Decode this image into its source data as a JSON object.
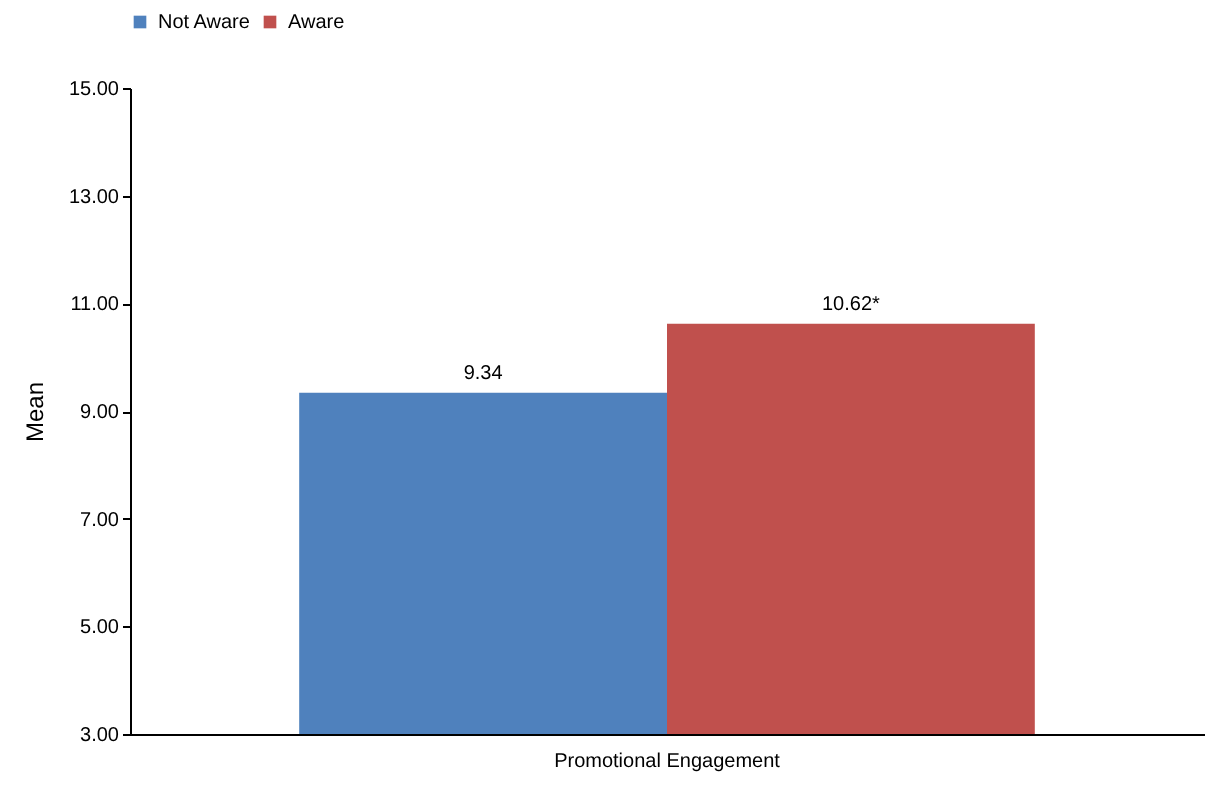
{
  "chart_data": {
    "type": "bar",
    "ylabel": "Mean",
    "categories": [
      "Promotional Engagement"
    ],
    "series": [
      {
        "name": "Not Aware",
        "color": "#4f81bd",
        "values": [
          9.34
        ],
        "value_labels": [
          "9.34"
        ]
      },
      {
        "name": "Aware",
        "color": "#c0504d",
        "values": [
          10.62
        ],
        "value_labels": [
          "10.62*"
        ]
      }
    ],
    "ylim": [
      3,
      15
    ],
    "yticks": [
      {
        "value": 3,
        "label": "3.00"
      },
      {
        "value": 5,
        "label": "5.00"
      },
      {
        "value": 7,
        "label": "7.00"
      },
      {
        "value": 9,
        "label": "9.00"
      },
      {
        "value": 11,
        "label": "11.00"
      },
      {
        "value": 13,
        "label": "13.00"
      },
      {
        "value": 15,
        "label": "15.00"
      }
    ],
    "grid": false,
    "legend": "top"
  }
}
